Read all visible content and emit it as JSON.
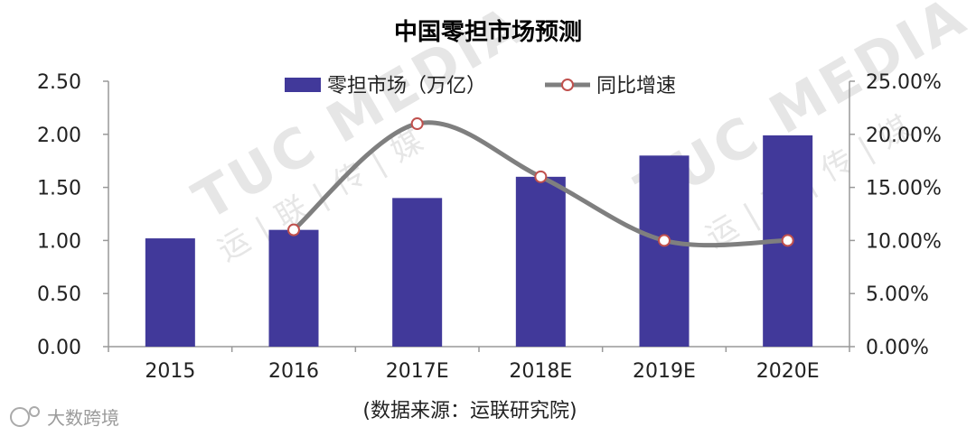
{
  "chart_data": {
    "type": "bar",
    "title": "中国零担市场预测",
    "categories": [
      "2015",
      "2016",
      "2017E",
      "2018E",
      "2019E",
      "2020E"
    ],
    "series": [
      {
        "name": "零担市场（万亿）",
        "type": "bar",
        "axis": "left",
        "values": [
          1.02,
          1.1,
          1.4,
          1.6,
          1.8,
          1.99
        ]
      },
      {
        "name": "同比增速",
        "type": "line",
        "axis": "right",
        "values": [
          null,
          11.0,
          21.0,
          16.0,
          10.0,
          10.0
        ]
      }
    ],
    "ylim": [
      0,
      2.5
    ],
    "yticks": [
      "0.00",
      "0.50",
      "1.00",
      "1.50",
      "2.00",
      "2.50"
    ],
    "y2lim": [
      0,
      25
    ],
    "y2ticks": [
      "0.00%",
      "5.00%",
      "10.00%",
      "15.00%",
      "20.00%",
      "25.00%"
    ],
    "legend_position": "top",
    "grid": false,
    "source": "(数据来源：运联研究院)",
    "colors": {
      "bar": "#41399a",
      "line": "#7f7f7f",
      "marker_edge": "#c0504d",
      "axis": "#999999"
    }
  },
  "watermarks": {
    "brand": "TUC MEDIA",
    "brand_cn": "运|联|传|媒",
    "corner": "大数跨境"
  }
}
